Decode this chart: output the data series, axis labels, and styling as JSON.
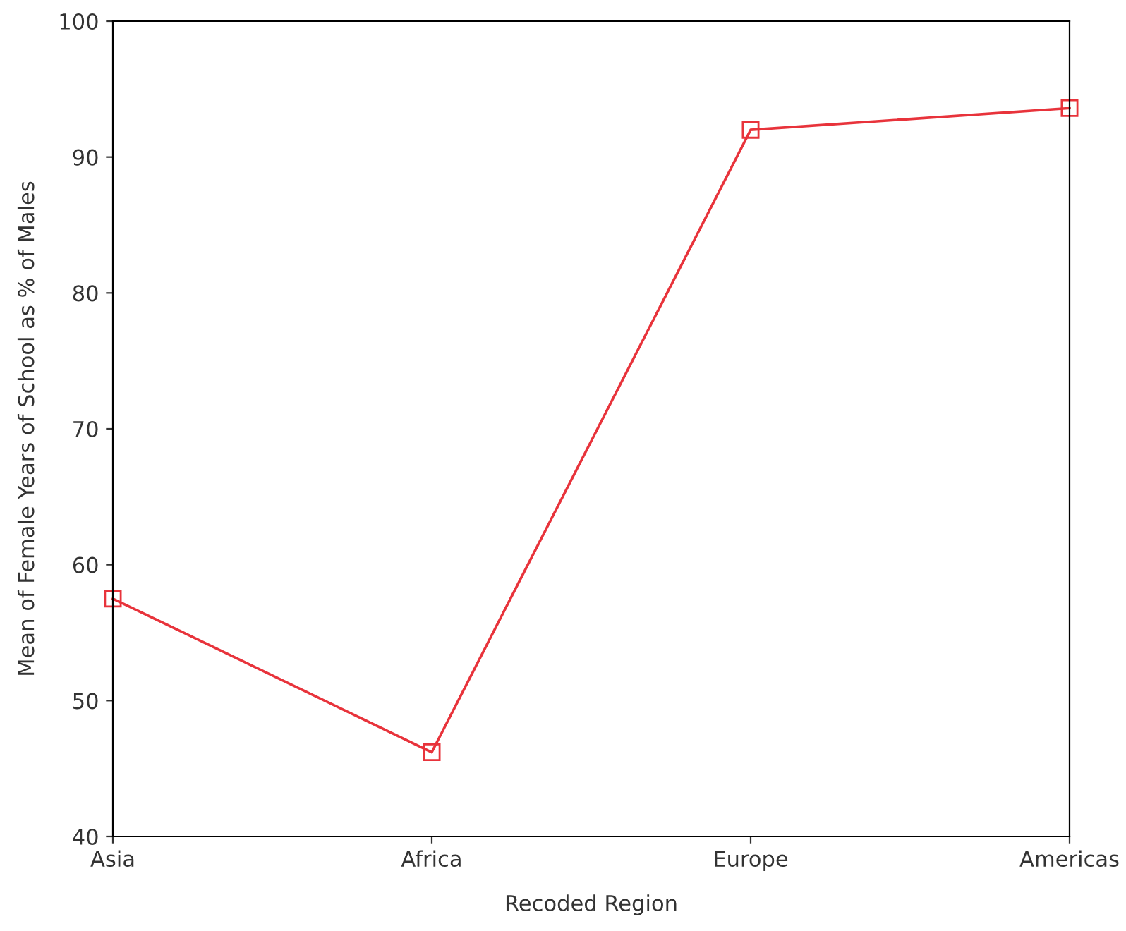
{
  "chart_data": {
    "type": "line",
    "xlabel": "Recoded Region",
    "ylabel": "Mean of Female Years of School as % of Males",
    "categories": [
      "Asia",
      "Africa",
      "Europe",
      "Americas"
    ],
    "series": [
      {
        "color": "#e8333b",
        "values": [
          57.5,
          46.2,
          92.0,
          93.6
        ]
      }
    ],
    "ylim": [
      40,
      100
    ],
    "yticks": [
      40,
      50,
      60,
      70,
      80,
      90,
      100
    ],
    "marker": "square",
    "line_style": "solid",
    "grid": false,
    "legend": false
  }
}
